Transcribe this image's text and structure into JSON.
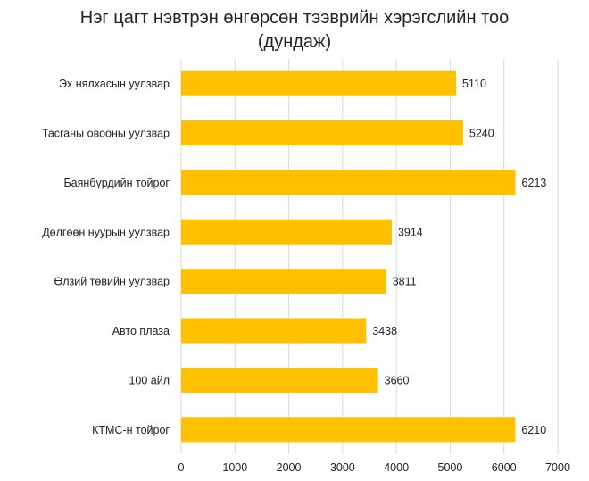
{
  "chart_data": {
    "type": "bar",
    "orientation": "horizontal",
    "title_lines": [
      "Нэг цагт нэвтрэн өнгөрсөн тээврийн хэрэгслийн тоо",
      "(дундаж)"
    ],
    "categories": [
      "Эх нялхасын уулзвар",
      "Тасганы овооны уулзвар",
      "Баянбүрдийн тойрог",
      "Дөлгөөн нуурын уулзвар",
      "Өлзий төвийн уулзвар",
      "Авто плаза",
      "100 айл",
      "КТМС-н тойрог"
    ],
    "values": [
      5110,
      5240,
      6213,
      3914,
      3811,
      3438,
      3660,
      6210
    ],
    "xlim": [
      0,
      7000
    ],
    "xticks": [
      0,
      1000,
      2000,
      3000,
      4000,
      5000,
      6000,
      7000
    ],
    "grid": true,
    "bar_color": "#FFC000",
    "grid_color": "#d9d9d9"
  }
}
